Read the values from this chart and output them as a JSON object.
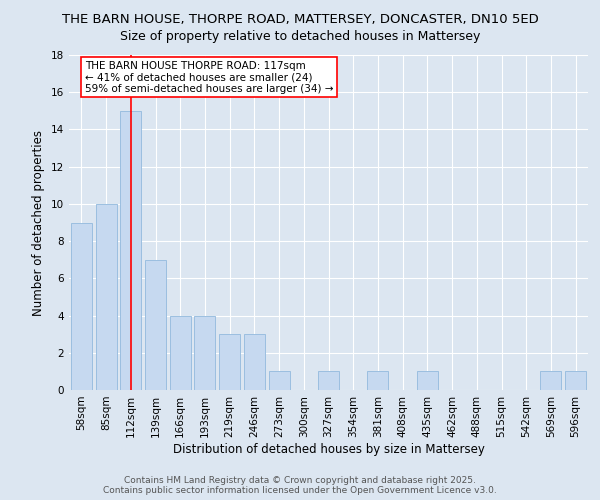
{
  "title_line1": "THE BARN HOUSE, THORPE ROAD, MATTERSEY, DONCASTER, DN10 5ED",
  "title_line2": "Size of property relative to detached houses in Mattersey",
  "xlabel": "Distribution of detached houses by size in Mattersey",
  "ylabel": "Number of detached properties",
  "categories": [
    "58sqm",
    "85sqm",
    "112sqm",
    "139sqm",
    "166sqm",
    "193sqm",
    "219sqm",
    "246sqm",
    "273sqm",
    "300sqm",
    "327sqm",
    "354sqm",
    "381sqm",
    "408sqm",
    "435sqm",
    "462sqm",
    "488sqm",
    "515sqm",
    "542sqm",
    "569sqm",
    "596sqm"
  ],
  "values": [
    9,
    10,
    15,
    7,
    4,
    4,
    3,
    3,
    1,
    0,
    1,
    0,
    1,
    0,
    1,
    0,
    0,
    0,
    0,
    1,
    1
  ],
  "bar_color": "#c6d9f0",
  "bar_edgecolor": "#9bbfe0",
  "bar_linewidth": 0.7,
  "redline_index": 2,
  "ylim": [
    0,
    18
  ],
  "yticks": [
    0,
    2,
    4,
    6,
    8,
    10,
    12,
    14,
    16,
    18
  ],
  "background_color": "#dce6f1",
  "plot_bg_color": "#dce6f1",
  "grid_color": "#ffffff",
  "annotation_text": "THE BARN HOUSE THORPE ROAD: 117sqm\n← 41% of detached houses are smaller (24)\n59% of semi-detached houses are larger (34) →",
  "footer_line1": "Contains HM Land Registry data © Crown copyright and database right 2025.",
  "footer_line2": "Contains public sector information licensed under the Open Government Licence v3.0.",
  "title1_fontsize": 9.5,
  "title2_fontsize": 9.0,
  "label_fontsize": 8.5,
  "tick_fontsize": 7.5,
  "annotation_fontsize": 7.5,
  "footer_fontsize": 6.5
}
